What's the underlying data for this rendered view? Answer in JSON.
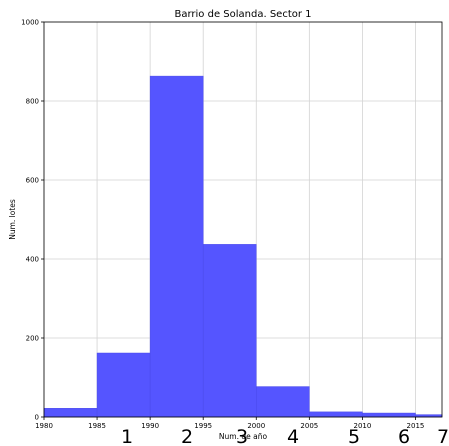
{
  "chart_data": {
    "type": "bar",
    "title": "Barrio de Solanda. Sector 1",
    "xlabel": "Num. de año",
    "ylabel": "Num. lotes",
    "xlim": [
      1980,
      2017.5
    ],
    "ylim": [
      0,
      1000
    ],
    "x_ticks": [
      1980,
      1985,
      1990,
      1995,
      2000,
      2005,
      2010,
      2015
    ],
    "y_ticks": [
      0,
      200,
      400,
      600,
      800,
      1000
    ],
    "grid": true,
    "bar_color": "#5555ff",
    "bins": [
      {
        "start": 1980,
        "end": 1985,
        "value": 22
      },
      {
        "start": 1985,
        "end": 1990,
        "value": 162
      },
      {
        "start": 1990,
        "end": 1995,
        "value": 863
      },
      {
        "start": 1995,
        "end": 2000,
        "value": 437
      },
      {
        "start": 2000,
        "end": 2005,
        "value": 77
      },
      {
        "start": 2005,
        "end": 2010,
        "value": 13
      },
      {
        "start": 2010,
        "end": 2015,
        "value": 10
      },
      {
        "start": 2015,
        "end": 2017.5,
        "value": 6
      }
    ]
  },
  "overlay_labels": [
    "1",
    "2",
    "3",
    "4",
    "5",
    "6",
    "7"
  ]
}
